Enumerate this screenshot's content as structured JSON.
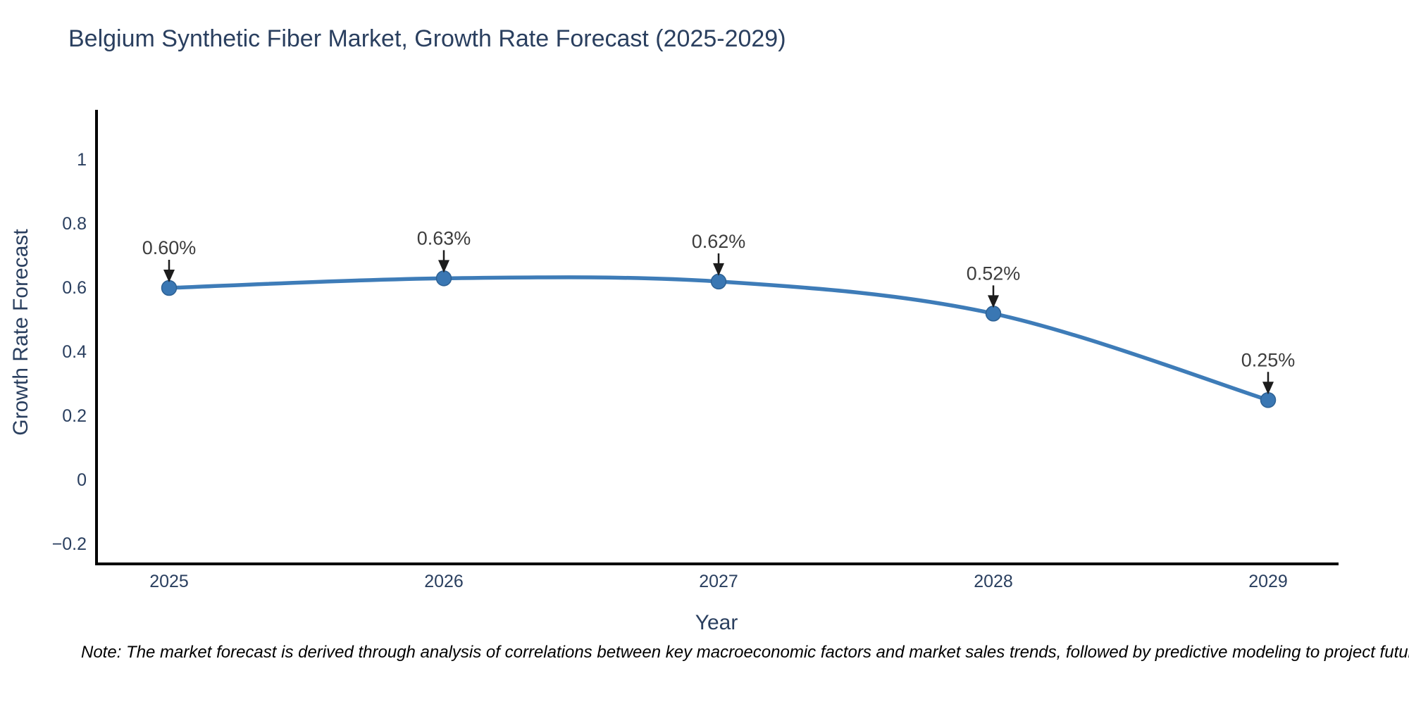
{
  "title": "Belgium Synthetic Fiber Market, Growth Rate Forecast (2025-2029)",
  "note": "Note: The market forecast is derived through analysis of correlations between key macroeconomic factors and market sales trends, followed by predictive modeling to project future sa",
  "chart_data": {
    "type": "line",
    "title": "Belgium Synthetic Fiber Market, Growth Rate Forecast (2025-2029)",
    "xlabel": "Year",
    "ylabel": "Growth Rate Forecast",
    "x": [
      2025,
      2026,
      2027,
      2028,
      2029
    ],
    "series": [
      {
        "name": "Growth Rate Forecast",
        "values": [
          0.6,
          0.63,
          0.62,
          0.52,
          0.25
        ]
      }
    ],
    "point_labels": [
      "0.60%",
      "0.63%",
      "0.62%",
      "0.52%",
      "0.25%"
    ],
    "x_tick_labels": [
      "2025",
      "2026",
      "2027",
      "2028",
      "2029"
    ],
    "y_ticks": [
      {
        "value": 1.0,
        "label": "1"
      },
      {
        "value": 0.8,
        "label": "0.8"
      },
      {
        "value": 0.6,
        "label": "0.6"
      },
      {
        "value": 0.4,
        "label": "0.4"
      },
      {
        "value": 0.2,
        "label": "0.2"
      },
      {
        "value": 0.0,
        "label": "0"
      },
      {
        "value": -0.2,
        "label": "−0.2"
      }
    ],
    "ylim": [
      -0.26,
      1.15
    ],
    "line_shape": "spline",
    "grid": false,
    "legend": false,
    "colors": {
      "line": "#3e7cb8",
      "marker": "#3a77b3",
      "marker_edge": "#2d6194",
      "axis": "#000000",
      "tick_text": "#2a3f5f",
      "annotation_text": "#3d3d3d",
      "arrow": "#1c1c1c",
      "title_text": "#2a3f5f",
      "background": "#ffffff"
    }
  }
}
